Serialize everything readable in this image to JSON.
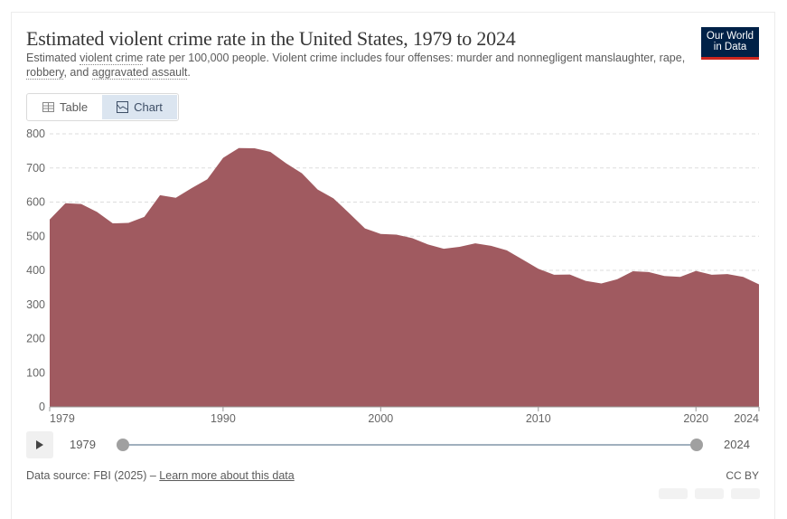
{
  "header": {
    "title": "Estimated violent crime rate in the United States, 1979 to 2024",
    "subtitle_parts": [
      "Estimated ",
      "violent crime",
      " rate per 100,000 people. Violent crime includes four offenses: murder and nonnegligent manslaughter, rape, ",
      "robbery",
      ", and ",
      "aggravated assault",
      "."
    ],
    "logo": "Our World in Data"
  },
  "tabs": [
    {
      "label": "Table",
      "icon": "table-icon"
    },
    {
      "label": "Chart",
      "icon": "chart-icon",
      "active": true
    }
  ],
  "chart_data": {
    "type": "area",
    "title": "Estimated violent crime rate in the United States, 1979 to 2024",
    "color": "#a05a60",
    "xlim": [
      1979,
      2024
    ],
    "ylim": [
      0,
      800
    ],
    "x_ticks": [
      1979,
      1990,
      2000,
      2010,
      2020,
      2024
    ],
    "y_ticks": [
      0,
      100,
      200,
      300,
      400,
      500,
      600,
      700,
      800
    ],
    "grid": "horizontal dashed",
    "x": [
      1979,
      1980,
      1981,
      1982,
      1983,
      1984,
      1985,
      1986,
      1987,
      1988,
      1989,
      1990,
      1991,
      1992,
      1993,
      1994,
      1995,
      1996,
      1997,
      1998,
      1999,
      2000,
      2001,
      2002,
      2003,
      2004,
      2005,
      2006,
      2007,
      2008,
      2009,
      2010,
      2011,
      2012,
      2013,
      2014,
      2015,
      2016,
      2017,
      2018,
      2019,
      2020,
      2021,
      2022,
      2023,
      2024
    ],
    "values": [
      548.9,
      596.6,
      594.3,
      571.1,
      537.7,
      539.2,
      556.6,
      620.1,
      612.5,
      640.6,
      666.9,
      729.6,
      758.2,
      757.7,
      747.1,
      713.6,
      684.5,
      636.6,
      611.0,
      567.6,
      523.0,
      506.5,
      504.5,
      494.4,
      475.8,
      463.2,
      469.0,
      479.3,
      471.8,
      458.6,
      431.9,
      404.5,
      387.1,
      387.8,
      369.1,
      361.6,
      373.7,
      397.5,
      394.9,
      383.4,
      380.8,
      398.5,
      387.0,
      389.0,
      380.7,
      359.1
    ]
  },
  "timeline": {
    "start": "1979",
    "end": "2024"
  },
  "footer": {
    "source_prefix": "Data source: FBI (2025) – ",
    "learn_more": "Learn more about this data",
    "license": "CC BY"
  }
}
